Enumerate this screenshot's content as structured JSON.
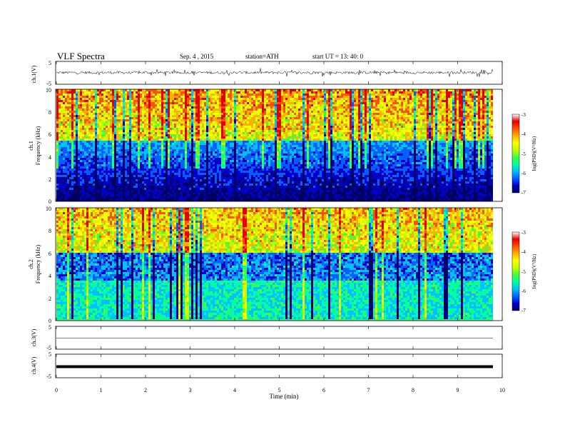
{
  "header": {
    "title": "VLF  Spectra",
    "date": "Sep. 4  , 2015",
    "station": "station=ATH",
    "start": "start  UT  =   13: 40: 0"
  },
  "colorbar": {
    "label": "log(PSD)(V²/Hz)",
    "ticks": [
      "-3",
      "-4",
      "-5",
      "-6",
      "-7"
    ],
    "colors": [
      "#000060",
      "#0000c8",
      "#0060ff",
      "#00c0ff",
      "#00ffa0",
      "#40ff40",
      "#c0ff00",
      "#ffff00",
      "#ffb000",
      "#ff5000",
      "#e00000",
      "#ffffff"
    ]
  },
  "chart_data": [
    {
      "type": "line",
      "panel": "ch1-waveform",
      "ylabel": "ch.1(V)",
      "ylim": [
        -5,
        5
      ],
      "yticks": [
        "5",
        "-5"
      ],
      "xlim": [
        0,
        10
      ],
      "data_extent_min": 9.8,
      "baseline": 0.1,
      "noise_amplitude": 1.2
    },
    {
      "type": "heatmap",
      "panel": "ch1-spectrogram",
      "ylabel": "ch.1\nFrequency (kHz)",
      "ylim": [
        0,
        10
      ],
      "yticks": [
        "10",
        "8",
        "6",
        "4",
        "2",
        "0"
      ],
      "xlim": [
        0,
        10
      ],
      "zlabel": "log(PSD)(V²/Hz)",
      "zlim": [
        -7,
        -3
      ]
    },
    {
      "type": "heatmap",
      "panel": "ch2-spectrogram",
      "ylabel": "ch.2\nFrequency (kHz)",
      "ylim": [
        0,
        10
      ],
      "yticks": [
        "10",
        "8",
        "6",
        "4",
        "2",
        "0"
      ],
      "xlim": [
        0,
        10
      ],
      "zlabel": "log(PSD)(V²/Hz)",
      "zlim": [
        -7,
        -3
      ]
    },
    {
      "type": "line",
      "panel": "ch3-waveform",
      "ylabel": "ch.3(V)",
      "ylim": [
        -5,
        5
      ],
      "yticks": [
        "5",
        "-5"
      ],
      "xlim": [
        0,
        10
      ],
      "baseline": -0.2,
      "noise_amplitude": 0.05
    },
    {
      "type": "line",
      "panel": "ch4-waveform",
      "ylabel": "ch.4(V)",
      "ylim": [
        -5,
        5
      ],
      "yticks": [
        "5",
        "-5"
      ],
      "xlim": [
        0,
        10
      ],
      "xlabel": "Time  (min)",
      "xticks": [
        "0",
        "1",
        "2",
        "3",
        "4",
        "5",
        "6",
        "7",
        "8",
        "9",
        "10"
      ],
      "baseline": -0.3,
      "noise_amplitude": 0.0
    }
  ]
}
